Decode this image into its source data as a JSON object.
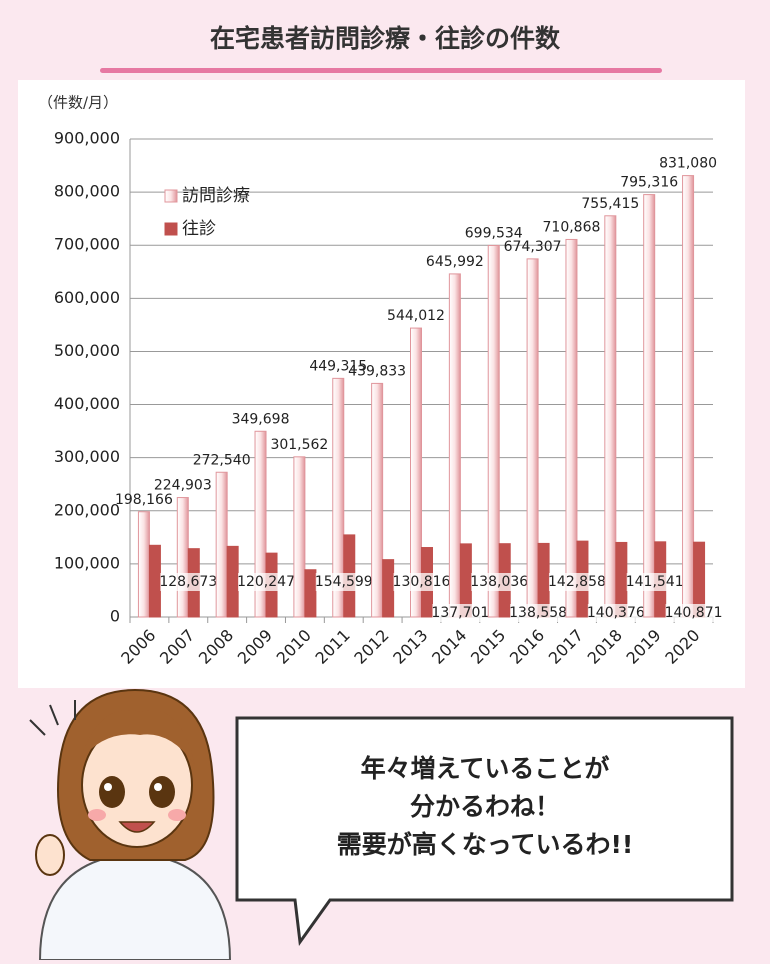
{
  "header": {
    "title": "在宅患者訪問診療・往診の件数"
  },
  "chart_data": {
    "type": "bar",
    "y_label": "（件数/月）",
    "categories": [
      "2006",
      "2007",
      "2008",
      "2009",
      "2010",
      "2011",
      "2012",
      "2013",
      "2014",
      "2015",
      "2016",
      "2017",
      "2018",
      "2019",
      "2020"
    ],
    "series": [
      {
        "name": "訪問診療",
        "color": "#e0959b",
        "values": [
          198166,
          224903,
          272540,
          349698,
          301562,
          449315,
          439833,
          544012,
          645992,
          699534,
          674307,
          710868,
          755415,
          795316,
          831080
        ],
        "value_labels": [
          "198,166",
          "224,903",
          "272,540",
          "349,698",
          "301,562",
          "449,315",
          "439,833",
          "544,012",
          "645,992",
          "699,534",
          "674,307",
          "710,868",
          "755,415",
          "795,316",
          "831,080"
        ]
      },
      {
        "name": "往診",
        "color": "#c0504d",
        "values": [
          135000,
          128673,
          133000,
          120247,
          89000,
          154599,
          108000,
          130816,
          137701,
          138036,
          138558,
          142858,
          140376,
          141541,
          140871
        ],
        "value_labels": [
          null,
          "128,673",
          null,
          "120,247",
          null,
          "154,599",
          null,
          "130,816",
          "137,701",
          "138,036",
          "138,558",
          "142,858",
          "140,376",
          "141,541",
          "140,871"
        ]
      }
    ],
    "ylim": [
      0,
      900000
    ],
    "yticks": [
      0,
      {
        "value": 100000,
        "label": "100,000"
      },
      {
        "value": 200000,
        "label": "200,000"
      },
      {
        "value": 300000,
        "label": "300,000"
      },
      {
        "value": 400000,
        "label": "400,000"
      },
      {
        "value": 500000,
        "label": "500,000"
      },
      {
        "value": 600000,
        "label": "600,000"
      },
      {
        "value": 700000,
        "label": "700,000"
      },
      {
        "value": 800000,
        "label": "800,000"
      },
      {
        "value": 900000,
        "label": "900,000"
      }
    ],
    "grid": true,
    "legend": "top-left"
  },
  "message": {
    "lines": [
      "年々増えていることが",
      "分かるわね！",
      "需要が高くなっているわ!!"
    ]
  }
}
